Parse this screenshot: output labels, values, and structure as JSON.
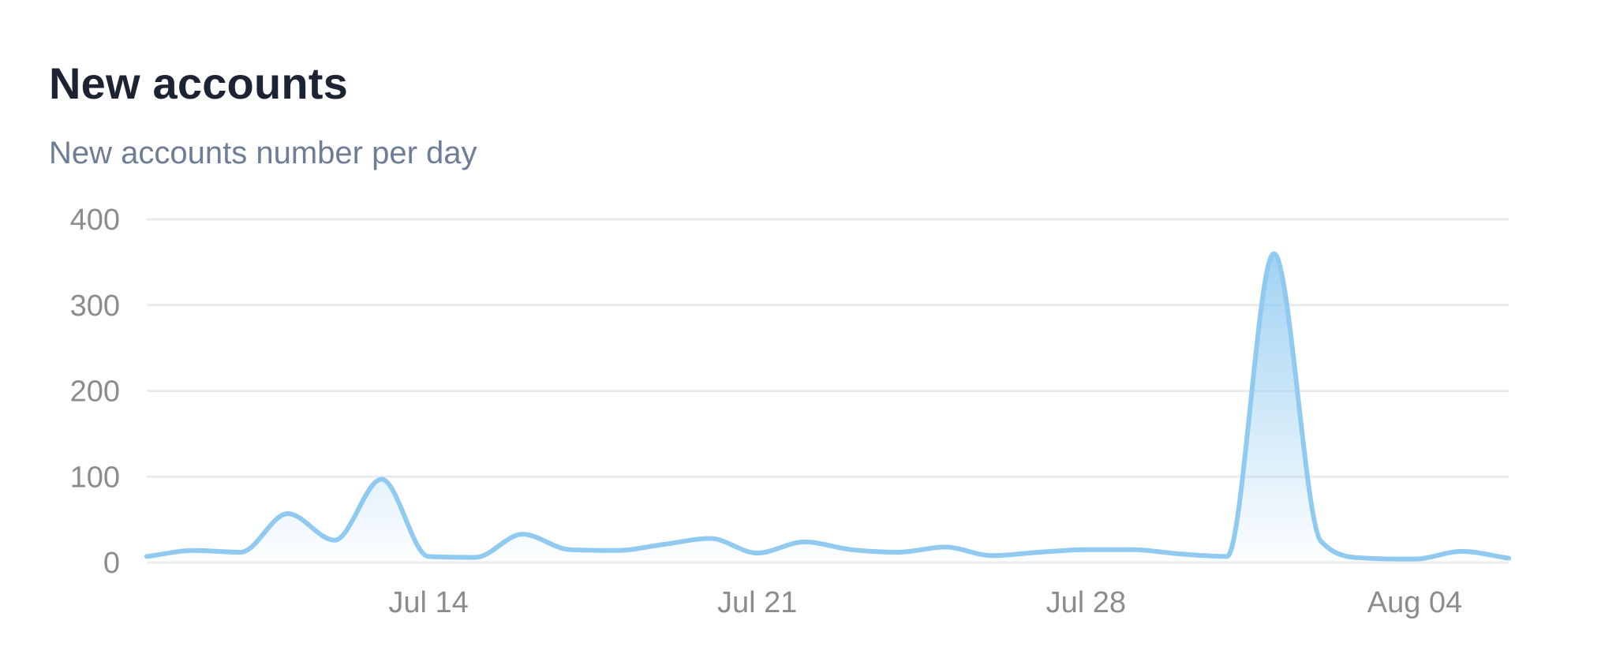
{
  "card": {
    "title": "New accounts",
    "subtitle": "New accounts number per day"
  },
  "chart_data": {
    "type": "area",
    "title": "New accounts",
    "subtitle": "New accounts number per day",
    "xlabel": "",
    "ylabel": "",
    "ylim": [
      0,
      400
    ],
    "y_ticks": [
      0,
      100,
      200,
      300,
      400
    ],
    "x_ticks": [
      {
        "date": "2025-07-14",
        "label": "Jul 14"
      },
      {
        "date": "2025-07-21",
        "label": "Jul 21"
      },
      {
        "date": "2025-07-28",
        "label": "Jul 28"
      },
      {
        "date": "2025-08-04",
        "label": "Aug 04"
      }
    ],
    "grid": true,
    "legend": "none",
    "series": [
      {
        "color": "#90caf0",
        "points": [
          {
            "x": "2025-07-08",
            "y": 7
          },
          {
            "x": "2025-07-09",
            "y": 14
          },
          {
            "x": "2025-07-10",
            "y": 12
          },
          {
            "x": "2025-07-11",
            "y": 57
          },
          {
            "x": "2025-07-12",
            "y": 26
          },
          {
            "x": "2025-07-13",
            "y": 97
          },
          {
            "x": "2025-07-14",
            "y": 7
          },
          {
            "x": "2025-07-15",
            "y": 6
          },
          {
            "x": "2025-07-16",
            "y": 33
          },
          {
            "x": "2025-07-17",
            "y": 15
          },
          {
            "x": "2025-07-18",
            "y": 14
          },
          {
            "x": "2025-07-19",
            "y": 21
          },
          {
            "x": "2025-07-20",
            "y": 28
          },
          {
            "x": "2025-07-21",
            "y": 11
          },
          {
            "x": "2025-07-22",
            "y": 24
          },
          {
            "x": "2025-07-23",
            "y": 15
          },
          {
            "x": "2025-07-24",
            "y": 12
          },
          {
            "x": "2025-07-25",
            "y": 18
          },
          {
            "x": "2025-07-26",
            "y": 8
          },
          {
            "x": "2025-07-27",
            "y": 12
          },
          {
            "x": "2025-07-28",
            "y": 15
          },
          {
            "x": "2025-07-29",
            "y": 15
          },
          {
            "x": "2025-07-30",
            "y": 10
          },
          {
            "x": "2025-07-31",
            "y": 7
          },
          {
            "x": "2025-08-01",
            "y": 360
          },
          {
            "x": "2025-08-02",
            "y": 25
          },
          {
            "x": "2025-08-03",
            "y": 5
          },
          {
            "x": "2025-08-04",
            "y": 4
          },
          {
            "x": "2025-08-05",
            "y": 13
          },
          {
            "x": "2025-08-06",
            "y": 5
          }
        ]
      }
    ]
  }
}
